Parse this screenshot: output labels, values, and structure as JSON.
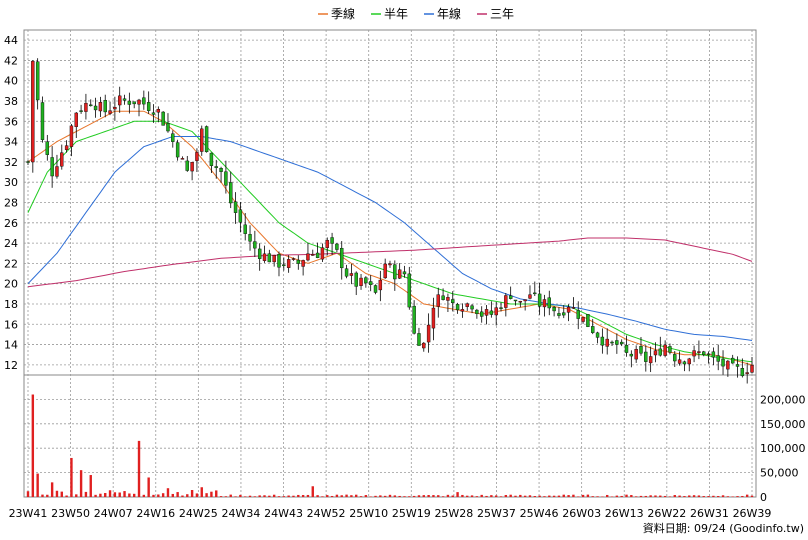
{
  "legend": [
    {
      "label": "季線",
      "color": "#e8762c"
    },
    {
      "label": "半年",
      "color": "#22cc22"
    },
    {
      "label": "年線",
      "color": "#2f6fd6"
    },
    {
      "label": "三年",
      "color": "#c0306a"
    }
  ],
  "credit": "資料日期: 09/24  (Goodinfo.tw)",
  "colors": {
    "up": "#e02020",
    "down": "#20b020",
    "volume": "#e02020",
    "wick": "#000000",
    "grid": "#9a9a9a"
  },
  "chart_data": {
    "type": "candlestick",
    "x_ticks": [
      "23W41",
      "23W50",
      "24W07",
      "24W16",
      "24W25",
      "24W34",
      "24W43",
      "24W52",
      "25W10",
      "25W19",
      "25W28",
      "25W37",
      "25W46",
      "26W03",
      "26W13",
      "26W22",
      "26W31",
      "26W39"
    ],
    "price_axis": {
      "ticks": [
        12,
        14,
        16,
        18,
        20,
        22,
        24,
        26,
        28,
        30,
        32,
        34,
        36,
        38,
        40,
        42,
        44
      ],
      "range": [
        11,
        45
      ]
    },
    "volume_axis": {
      "ticks": [
        "0",
        "50,000",
        "100,000",
        "150,000",
        "200,000"
      ],
      "range": [
        0,
        250000
      ]
    },
    "price_keypoints": [
      [
        0,
        32
      ],
      [
        1,
        42
      ],
      [
        2,
        38
      ],
      [
        3,
        34
      ],
      [
        5,
        31
      ],
      [
        8,
        34
      ],
      [
        10,
        37
      ],
      [
        13,
        38
      ],
      [
        16,
        37
      ],
      [
        19,
        38
      ],
      [
        23,
        38
      ],
      [
        27,
        37
      ],
      [
        29,
        35
      ],
      [
        31,
        33
      ],
      [
        33,
        31
      ],
      [
        35,
        33
      ],
      [
        36,
        35
      ],
      [
        38,
        32
      ],
      [
        40,
        31
      ],
      [
        42,
        28
      ],
      [
        44,
        26
      ],
      [
        46,
        24
      ],
      [
        48,
        23
      ],
      [
        52,
        22
      ],
      [
        56,
        22
      ],
      [
        58,
        23
      ],
      [
        60,
        23
      ],
      [
        62,
        24
      ],
      [
        64,
        23
      ],
      [
        66,
        21
      ],
      [
        68,
        20
      ],
      [
        70,
        20
      ],
      [
        72,
        19
      ],
      [
        74,
        22
      ],
      [
        76,
        21
      ],
      [
        78,
        21
      ],
      [
        80,
        15
      ],
      [
        82,
        14
      ],
      [
        84,
        18
      ],
      [
        86,
        19
      ],
      [
        88,
        18
      ],
      [
        92,
        18
      ],
      [
        94,
        17
      ],
      [
        96,
        17
      ],
      [
        98,
        18
      ],
      [
        100,
        19
      ],
      [
        102,
        18
      ],
      [
        104,
        19
      ],
      [
        106,
        18
      ],
      [
        108,
        18
      ],
      [
        110,
        17
      ],
      [
        112,
        18
      ],
      [
        114,
        17
      ],
      [
        116,
        16
      ],
      [
        118,
        15
      ],
      [
        120,
        14
      ],
      [
        122,
        14
      ],
      [
        124,
        13
      ],
      [
        126,
        13
      ],
      [
        128,
        12.5
      ],
      [
        130,
        13
      ],
      [
        132,
        14
      ],
      [
        134,
        12.8
      ],
      [
        136,
        12.6
      ],
      [
        138,
        13
      ],
      [
        140,
        13.3
      ],
      [
        142,
        12.5
      ],
      [
        144,
        12
      ],
      [
        146,
        11.6
      ],
      [
        148,
        11.4
      ],
      [
        150,
        12
      ]
    ],
    "ma_keypoints": {
      "季線": [
        [
          0,
          32
        ],
        [
          6,
          34
        ],
        [
          12,
          35.5
        ],
        [
          18,
          37
        ],
        [
          24,
          37
        ],
        [
          28,
          36
        ],
        [
          34,
          33.5
        ],
        [
          40,
          30
        ],
        [
          46,
          26
        ],
        [
          52,
          23
        ],
        [
          58,
          22
        ],
        [
          64,
          23
        ],
        [
          70,
          21
        ],
        [
          76,
          20
        ],
        [
          82,
          18
        ],
        [
          88,
          17.5
        ],
        [
          94,
          17
        ],
        [
          100,
          17.5
        ],
        [
          106,
          18
        ],
        [
          112,
          17.5
        ],
        [
          118,
          16
        ],
        [
          124,
          14.5
        ],
        [
          130,
          13.5
        ],
        [
          136,
          13
        ],
        [
          142,
          13
        ],
        [
          150,
          12
        ]
      ],
      "半年": [
        [
          0,
          27
        ],
        [
          4,
          31
        ],
        [
          10,
          34
        ],
        [
          16,
          35
        ],
        [
          22,
          36
        ],
        [
          28,
          36
        ],
        [
          34,
          35
        ],
        [
          40,
          32
        ],
        [
          46,
          29
        ],
        [
          52,
          26
        ],
        [
          58,
          24
        ],
        [
          64,
          23
        ],
        [
          70,
          22
        ],
        [
          76,
          21
        ],
        [
          82,
          20
        ],
        [
          88,
          19
        ],
        [
          94,
          18.5
        ],
        [
          100,
          18
        ],
        [
          106,
          18
        ],
        [
          112,
          17.8
        ],
        [
          118,
          16.5
        ],
        [
          124,
          15
        ],
        [
          130,
          14
        ],
        [
          136,
          13.3
        ],
        [
          142,
          12.8
        ],
        [
          150,
          12.3
        ]
      ],
      "年線": [
        [
          0,
          20
        ],
        [
          6,
          23
        ],
        [
          12,
          27
        ],
        [
          18,
          31
        ],
        [
          24,
          33.5
        ],
        [
          30,
          34.5
        ],
        [
          36,
          34.5
        ],
        [
          42,
          34
        ],
        [
          48,
          33
        ],
        [
          54,
          32
        ],
        [
          60,
          31
        ],
        [
          66,
          29.5
        ],
        [
          72,
          28
        ],
        [
          78,
          26
        ],
        [
          84,
          23.5
        ],
        [
          90,
          21
        ],
        [
          96,
          19.5
        ],
        [
          102,
          18.5
        ],
        [
          108,
          18
        ],
        [
          114,
          17.6
        ],
        [
          120,
          17
        ],
        [
          126,
          16.3
        ],
        [
          132,
          15.5
        ],
        [
          138,
          15
        ],
        [
          144,
          14.8
        ],
        [
          150,
          14.4
        ]
      ],
      "三年": [
        [
          0,
          19.7
        ],
        [
          10,
          20.3
        ],
        [
          20,
          21.2
        ],
        [
          30,
          21.9
        ],
        [
          40,
          22.5
        ],
        [
          50,
          22.8
        ],
        [
          60,
          22.9
        ],
        [
          70,
          23.1
        ],
        [
          80,
          23.3
        ],
        [
          90,
          23.6
        ],
        [
          100,
          23.9
        ],
        [
          110,
          24.2
        ],
        [
          116,
          24.5
        ],
        [
          124,
          24.5
        ],
        [
          132,
          24.3
        ],
        [
          140,
          23.5
        ],
        [
          146,
          22.9
        ],
        [
          150,
          22.2
        ]
      ]
    },
    "volume_spikes": [
      [
        1,
        210000
      ],
      [
        2,
        48000
      ],
      [
        5,
        30000
      ],
      [
        9,
        80000
      ],
      [
        11,
        55000
      ],
      [
        13,
        45000
      ],
      [
        23,
        115000
      ],
      [
        25,
        40000
      ],
      [
        29,
        18000
      ],
      [
        36,
        20000
      ],
      [
        59,
        22000
      ],
      [
        89,
        10000
      ]
    ]
  }
}
